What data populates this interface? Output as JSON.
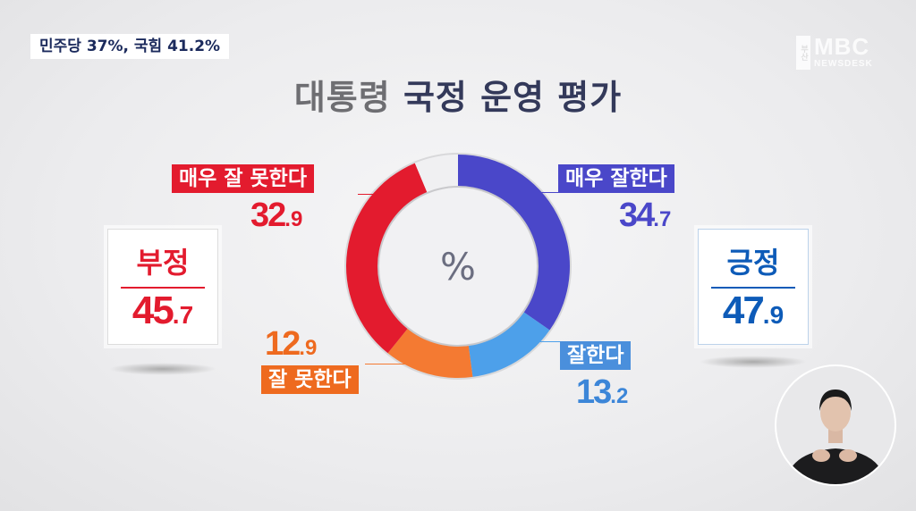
{
  "ticker": "민주당 37%, 국힘 41.2%",
  "logo": {
    "city": "부산",
    "brand": "MBC",
    "sub": "NEWSDESK"
  },
  "title_part1": "대통령",
  "title_part2": "국정 운영 평가",
  "chart_data": {
    "type": "pie",
    "style": "donut",
    "center_label": "%",
    "categories": [
      "매우 잘한다",
      "잘한다",
      "잘 못한다",
      "매우 잘 못한다",
      "(unlabeled remainder)"
    ],
    "values": [
      34.7,
      13.2,
      12.9,
      32.9,
      6.3
    ],
    "colors": [
      "#4a47c9",
      "#4da0ea",
      "#f47a32",
      "#e31b2e",
      "#f0f0f2"
    ],
    "labels": [
      {
        "label": "매우 잘한다",
        "int": "34",
        "dec": ".7"
      },
      {
        "label": "잘한다",
        "int": "13",
        "dec": ".2"
      },
      {
        "label": "잘 못한다",
        "int": "12",
        "dec": ".9"
      },
      {
        "label": "매우 잘 못한다",
        "int": "32",
        "dec": ".9"
      }
    ],
    "summary": {
      "negative": {
        "label": "부정",
        "int": "45",
        "dec": ".7",
        "color": "#e31b2e"
      },
      "positive": {
        "label": "긍정",
        "int": "47",
        "dec": ".9",
        "color": "#0d5bb8"
      }
    }
  }
}
